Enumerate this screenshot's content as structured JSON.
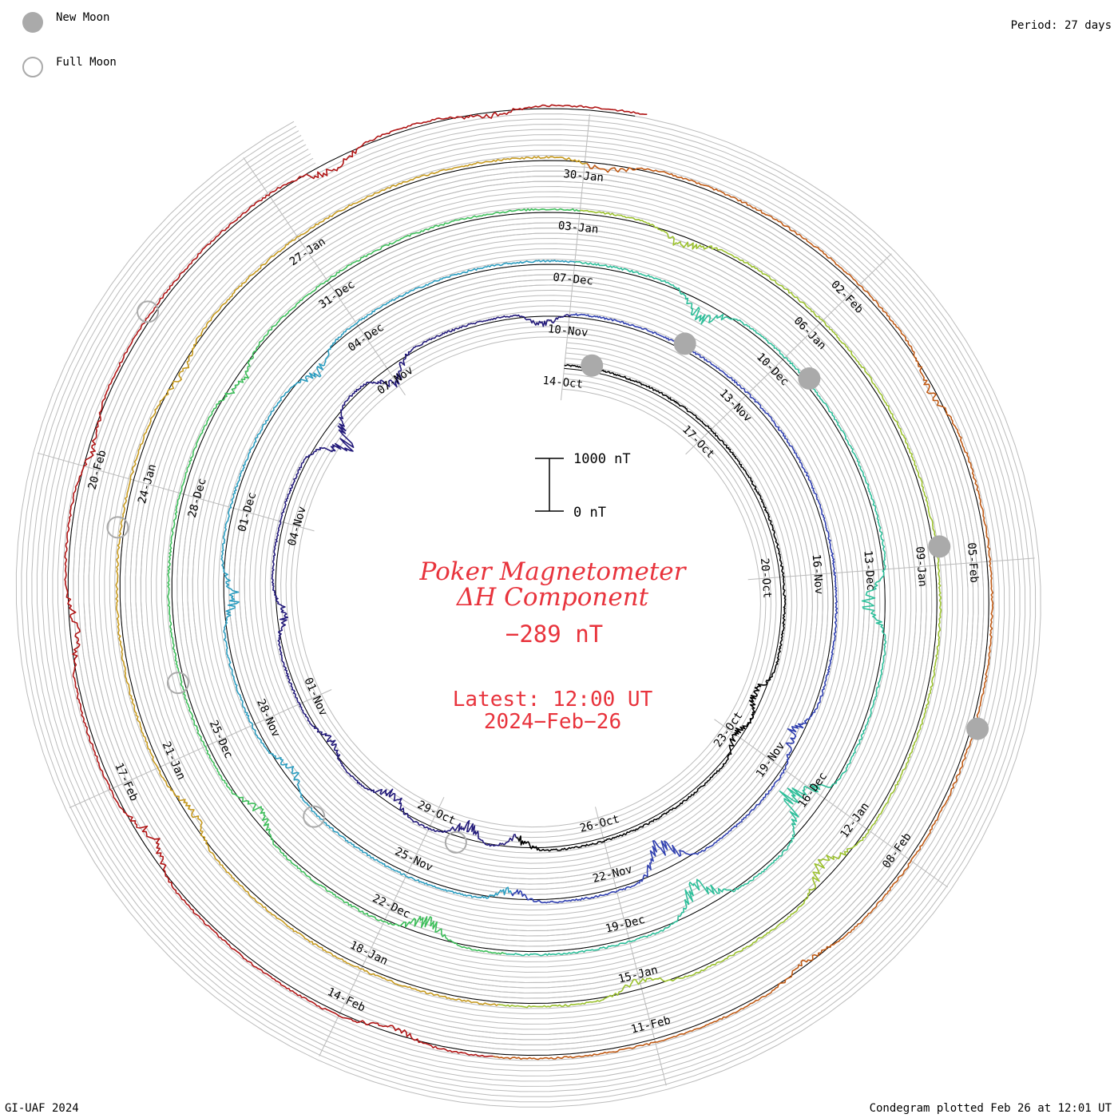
{
  "header": {
    "new_moon_label": "New Moon",
    "full_moon_label": "Full Moon",
    "period_label": "Period: 27 days"
  },
  "footer": {
    "credit": "GI-UAF 2024",
    "plotted": "Condegram plotted Feb 26 at 12:01 UT"
  },
  "center": {
    "title_line1": "Poker Magnetometer",
    "title_line2": "ΔH Component",
    "current_value": "−289 nT",
    "latest_line1": "Latest: 12:00 UT",
    "latest_line2": "2024−Feb−26",
    "scale_top_label": "1000 nT",
    "scale_bottom_label": "0 nT"
  },
  "colors": {
    "title": "#e8333c",
    "grid": "#bbbbbb",
    "baseline": "#000000",
    "moon_fill": "#aaaaaa",
    "moon_stroke": "#aaaaaa",
    "revolution_colors": [
      "#000000",
      "#231a7a",
      "#2f3fb0",
      "#2b9dc0",
      "#2dbf9a",
      "#3dbf5a",
      "#9cc22e",
      "#c79a1e",
      "#c05a14",
      "#b01414"
    ]
  },
  "chart_data": {
    "type": "condegram",
    "period_days": 27,
    "scale_nT": [
      0,
      1000
    ],
    "current_value_nT": -289,
    "start_date_label": "14-Oct",
    "latest": "2024-Feb-26 12:00 UT",
    "date_labels": [
      "14-Oct",
      "17-Oct",
      "20-Oct",
      "23-Oct",
      "26-Oct",
      "29-Oct",
      "01-Nov",
      "04-Nov",
      "07-Nov",
      "10-Nov",
      "13-Nov",
      "16-Nov",
      "19-Nov",
      "22-Nov",
      "25-Nov",
      "28-Nov",
      "01-Dec",
      "04-Dec",
      "07-Dec",
      "10-Dec",
      "13-Dec",
      "16-Dec",
      "19-Dec",
      "22-Dec",
      "25-Dec",
      "28-Dec",
      "31-Dec",
      "03-Jan",
      "06-Jan",
      "09-Jan",
      "12-Jan",
      "15-Jan",
      "18-Jan",
      "21-Jan",
      "24-Jan",
      "27-Jan",
      "30-Jan",
      "02-Feb",
      "05-Feb",
      "08-Feb",
      "11-Feb",
      "14-Feb",
      "17-Feb",
      "20-Feb"
    ],
    "new_moon_days": [
      0.5,
      28.8,
      57.4,
      86.8,
      115.6
    ],
    "full_moon_days": [
      14.5,
      43.5,
      72.8,
      101.5,
      130.5
    ],
    "disturbances": [
      {
        "day": 8.2,
        "amp_nT": 260
      },
      {
        "day": 9.0,
        "amp_nT": 180
      },
      {
        "day": 13.5,
        "amp_nT": 220
      },
      {
        "day": 14.4,
        "amp_nT": 300
      },
      {
        "day": 15.8,
        "amp_nT": 240
      },
      {
        "day": 17.2,
        "amp_nT": 160
      },
      {
        "day": 19.5,
        "amp_nT": 210
      },
      {
        "day": 22.6,
        "amp_nT": 560
      },
      {
        "day": 24.0,
        "amp_nT": 320
      },
      {
        "day": 26.6,
        "amp_nT": 220
      },
      {
        "day": 35.5,
        "amp_nT": 260
      },
      {
        "day": 38.2,
        "amp_nT": 480
      },
      {
        "day": 40.5,
        "amp_nT": 200
      },
      {
        "day": 44.2,
        "amp_nT": 220
      },
      {
        "day": 46.8,
        "amp_nT": 260
      },
      {
        "day": 50.2,
        "amp_nT": 230
      },
      {
        "day": 55.8,
        "amp_nT": 330
      },
      {
        "day": 60.4,
        "amp_nT": 380
      },
      {
        "day": 63.2,
        "amp_nT": 650
      },
      {
        "day": 65.0,
        "amp_nT": 460
      },
      {
        "day": 68.5,
        "amp_nT": 300
      },
      {
        "day": 71.0,
        "amp_nT": 220
      },
      {
        "day": 76.5,
        "amp_nT": 200
      },
      {
        "day": 82.2,
        "amp_nT": 220
      },
      {
        "day": 90.6,
        "amp_nT": 300
      },
      {
        "day": 93.0,
        "amp_nT": 200
      },
      {
        "day": 98.4,
        "amp_nT": 180
      },
      {
        "day": 103.2,
        "amp_nT": 160
      },
      {
        "day": 108.2,
        "amp_nT": 170
      },
      {
        "day": 112.2,
        "amp_nT": 160
      },
      {
        "day": 118.4,
        "amp_nT": 130
      },
      {
        "day": 122.5,
        "amp_nT": 160
      },
      {
        "day": 125.4,
        "amp_nT": 260
      },
      {
        "day": 127.5,
        "amp_nT": 200
      },
      {
        "day": 129.2,
        "amp_nT": 150
      },
      {
        "day": 132.6,
        "amp_nT": 220
      },
      {
        "day": 134.1,
        "amp_nT": 140
      }
    ]
  }
}
